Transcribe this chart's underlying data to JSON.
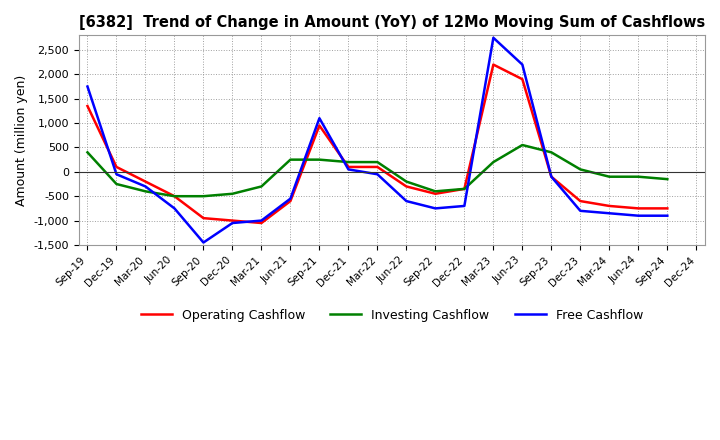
{
  "title": "[6382]  Trend of Change in Amount (YoY) of 12Mo Moving Sum of Cashflows",
  "ylabel": "Amount (million yen)",
  "ylim": [
    -1500,
    2800
  ],
  "yticks": [
    -1500,
    -1000,
    -500,
    0,
    500,
    1000,
    1500,
    2000,
    2500
  ],
  "x_labels": [
    "Sep-19",
    "Dec-19",
    "Mar-20",
    "Jun-20",
    "Sep-20",
    "Dec-20",
    "Mar-21",
    "Jun-21",
    "Sep-21",
    "Dec-21",
    "Mar-22",
    "Jun-22",
    "Sep-22",
    "Dec-22",
    "Mar-23",
    "Jun-23",
    "Sep-23",
    "Dec-23",
    "Mar-24",
    "Jun-24",
    "Sep-24",
    "Dec-24"
  ],
  "operating": [
    1350,
    100,
    -200,
    -500,
    -950,
    -1000,
    -1050,
    -600,
    950,
    100,
    100,
    -300,
    -450,
    -350,
    2200,
    1900,
    -100,
    -600,
    -700,
    -750,
    -750,
    null
  ],
  "investing": [
    400,
    -250,
    -400,
    -500,
    -500,
    -450,
    -300,
    250,
    250,
    200,
    200,
    -200,
    -400,
    -350,
    200,
    550,
    400,
    50,
    -100,
    -100,
    -150,
    null
  ],
  "free": [
    1750,
    -50,
    -300,
    -750,
    -1450,
    -1050,
    -1000,
    -550,
    1100,
    50,
    -50,
    -600,
    -750,
    -700,
    2750,
    2200,
    -100,
    -800,
    -850,
    -900,
    -900,
    null
  ],
  "colors": {
    "operating": "#ff0000",
    "investing": "#008000",
    "free": "#0000ff"
  },
  "legend_labels": [
    "Operating Cashflow",
    "Investing Cashflow",
    "Free Cashflow"
  ],
  "background": "#ffffff",
  "grid_color": "#888888"
}
